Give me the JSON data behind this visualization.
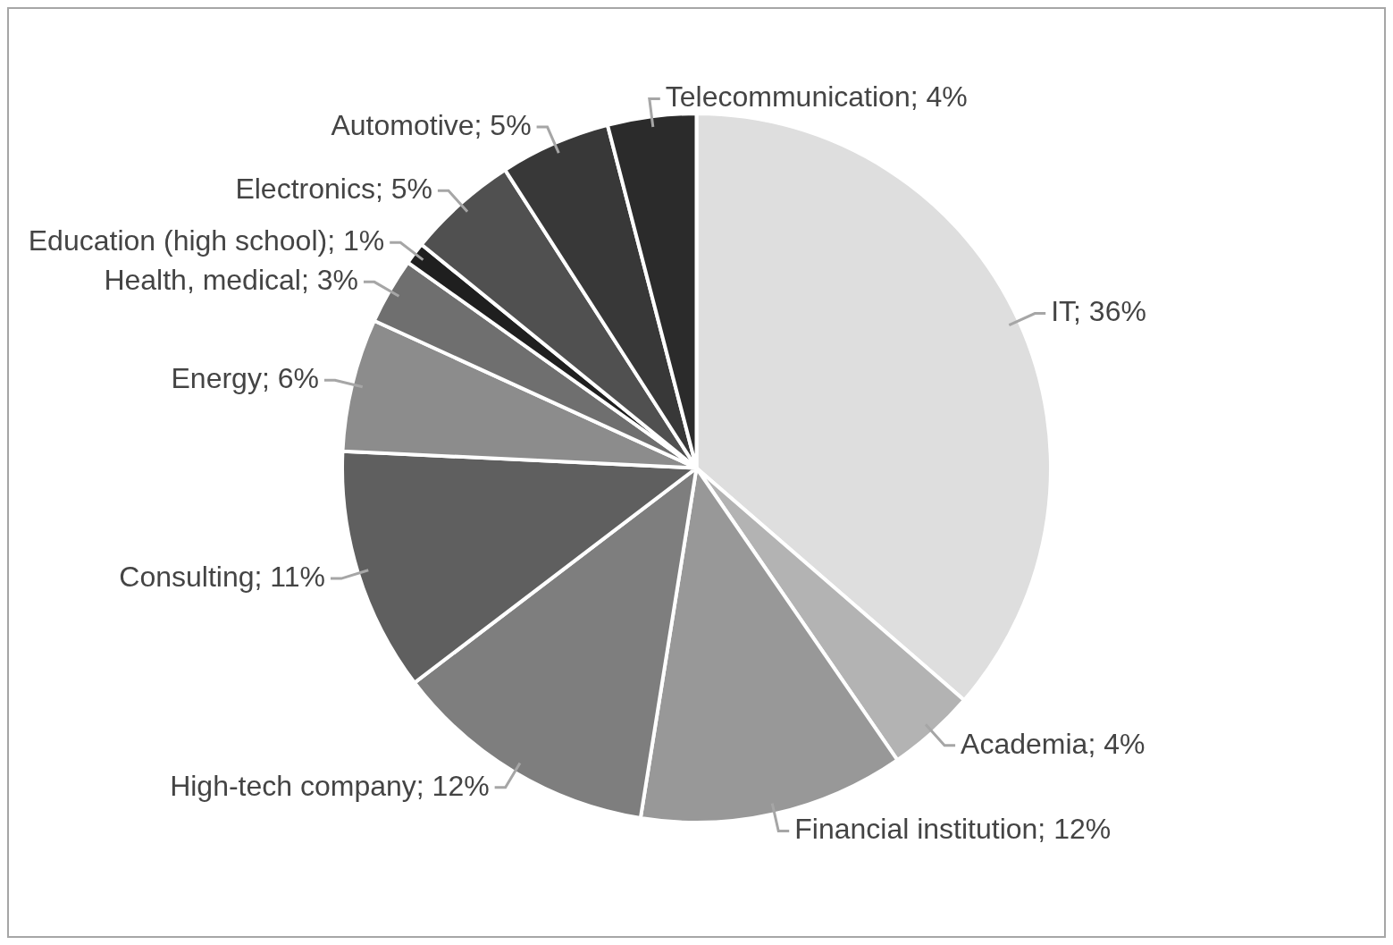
{
  "chart_data": {
    "type": "pie",
    "categories": [
      "IT",
      "Academia",
      "Financial institution",
      "High-tech company",
      "Consulting",
      "Energy",
      "Health, medical",
      "Education (high school)",
      "Electronics",
      "Automotive",
      "Telecommunication"
    ],
    "values": [
      36,
      4,
      12,
      12,
      11,
      6,
      3,
      1,
      5,
      5,
      4
    ],
    "value_labels": [
      "36%",
      "4%",
      "12%",
      "12%",
      "11%",
      "6%",
      "3%",
      "1%",
      "5%",
      "5%",
      "4%"
    ],
    "colors": [
      "#dedede",
      "#b3b3b3",
      "#989898",
      "#7e7e7e",
      "#5f5f5f",
      "#8c8c8c",
      "#6f6f6f",
      "#1f1f1f",
      "#505050",
      "#383838",
      "#2b2b2b"
    ],
    "legend": false
  }
}
